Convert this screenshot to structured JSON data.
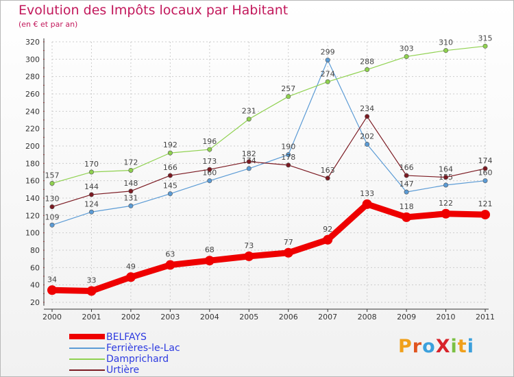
{
  "header": {
    "title": "Evolution des Impôts locaux par Habitant",
    "subtitle": "(en € et par an)"
  },
  "logo": {
    "text": "ProXiti",
    "letter_colors": [
      "#f0a01c",
      "#e0541e",
      "#3ba0dc",
      "#d8232a",
      "#7bc043",
      "#f0a01c",
      "#3ba0dc"
    ]
  },
  "chart_data": {
    "type": "line",
    "x": [
      "2000",
      "2001",
      "2002",
      "2003",
      "2004",
      "2005",
      "2006",
      "2007",
      "2008",
      "2009",
      "2010",
      "2011"
    ],
    "ylim": [
      20,
      320
    ],
    "yticks": [
      20,
      40,
      60,
      80,
      100,
      120,
      140,
      160,
      180,
      200,
      220,
      240,
      260,
      280,
      300,
      320
    ],
    "grid": true,
    "legend_position": "bottom-left",
    "series": [
      {
        "name": "BELFAYS",
        "color": "#ee0000",
        "values": [
          34,
          33,
          49,
          63,
          68,
          73,
          77,
          92,
          133,
          118,
          122,
          121
        ],
        "labels": [
          "34",
          "33",
          "49",
          "63",
          "68",
          "73",
          "77",
          "92",
          "133",
          "118",
          "122",
          "121"
        ]
      },
      {
        "name": "Ferrières-le-Lac",
        "color": "#5b9bd5",
        "values": [
          109,
          124,
          131,
          145,
          160,
          174,
          190,
          299,
          202,
          147,
          155,
          160
        ],
        "labels": [
          "109",
          "124",
          "131",
          "145",
          "160",
          "174",
          "190",
          "299",
          "202",
          "147",
          "155",
          "160"
        ]
      },
      {
        "name": "Damprichard",
        "color": "#8fd14f",
        "values": [
          157,
          170,
          172,
          192,
          196,
          231,
          257,
          274,
          288,
          303,
          310,
          315
        ],
        "labels": [
          "157",
          "170",
          "172",
          "192",
          "196",
          "231",
          "257",
          "274",
          "288",
          "303",
          "310",
          "315"
        ]
      },
      {
        "name": "Urtière",
        "color": "#7b1a22",
        "values": [
          130,
          144,
          148,
          166,
          173,
          182,
          178,
          163,
          234,
          166,
          164,
          174
        ],
        "labels": [
          "130",
          "144",
          "148",
          "166",
          "173",
          "182",
          "178",
          "163",
          "234",
          "166",
          "164",
          "174"
        ]
      }
    ]
  }
}
